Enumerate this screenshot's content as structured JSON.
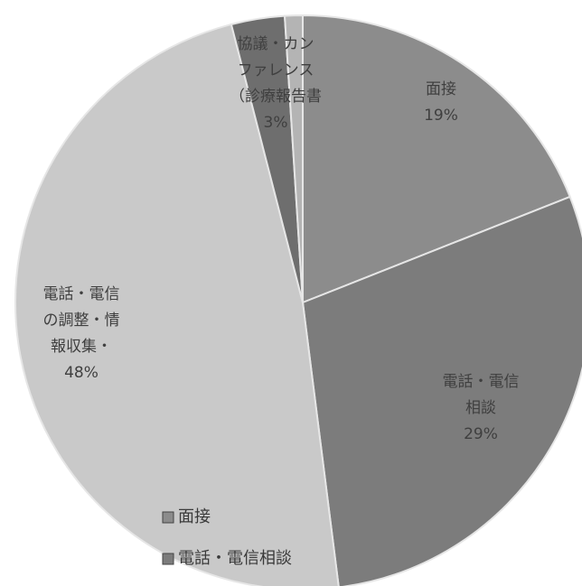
{
  "chart_data": {
    "type": "pie",
    "slices": [
      {
        "label_lines": [
          "面接",
          "19%"
        ],
        "value": 19,
        "color": "#8c8c8c"
      },
      {
        "label_lines": [
          "電話・電信",
          "相談",
          "29%"
        ],
        "value": 29,
        "color": "#7c7c7c"
      },
      {
        "label_lines": [
          "電話・電信",
          "の調整・情",
          "報収集・",
          "48%"
        ],
        "value": 48,
        "color": "#c9c9c9"
      },
      {
        "label_lines": [
          "協議・カン",
          "ファレンス",
          "（診療報告書",
          "3%"
        ],
        "value": 3,
        "color": "#6e6e6e"
      },
      {
        "label_lines": [],
        "value": 1,
        "color": "#b4b4b4"
      }
    ],
    "legend": [
      {
        "label": "面接",
        "color": "#8c8c8c"
      },
      {
        "label": "電話・電信相談",
        "color": "#7c7c7c"
      }
    ]
  }
}
